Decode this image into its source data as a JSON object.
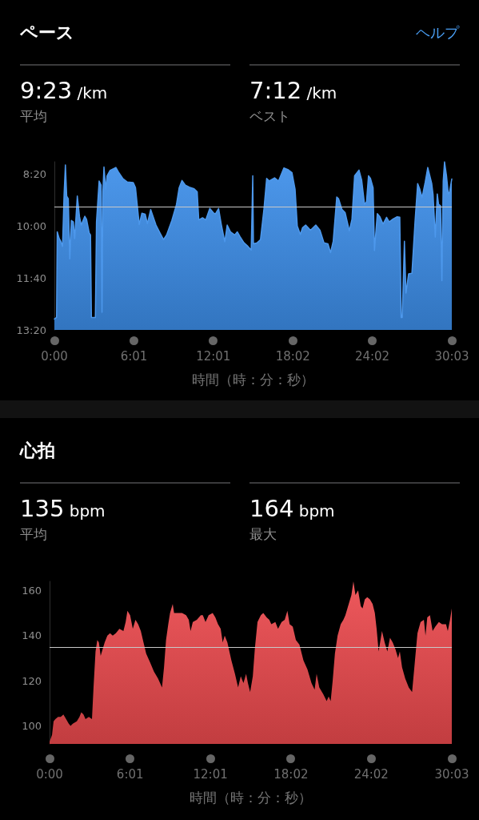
{
  "chart_data": [
    {
      "type": "line",
      "title": "ペース",
      "xlabel": "時間（時：分：秒）",
      "annotations": [
        "ヘルプ",
        "9:23 /km",
        "平均",
        "7:12 /km",
        "ベスト"
      ],
      "marker": "none",
      "x": [
        0,
        10,
        13,
        22,
        29,
        37,
        44,
        50,
        56,
        63,
        70,
        77,
        86,
        92,
        104,
        114,
        122,
        138,
        146,
        158,
        164,
        168,
        186,
        191,
        203,
        212,
        216,
        220,
        225,
        233,
        239,
        252,
        279,
        291,
        310,
        331,
        358,
        368,
        385,
        397,
        412,
        422,
        437,
        461,
        479,
        495,
        509,
        533,
        554,
        566,
        579,
        594,
        612,
        634,
        648,
        655,
        672,
        687,
        705,
        721,
        730,
        745,
        757,
        773,
        784,
        799,
        818,
        830,
        842,
        860,
        878,
        893,
        900,
        903,
        920,
        935,
        951,
        963,
        975,
        999,
        1017,
        1041,
        1059,
        1078,
        1092,
        1102,
        1116,
        1126,
        1140,
        1162,
        1186,
        1205,
        1223,
        1241,
        1253,
        1265,
        1281,
        1289,
        1305,
        1319,
        1338,
        1350,
        1362,
        1382,
        1394,
        1407,
        1416,
        1425,
        1434,
        1446,
        1452,
        1465,
        1477,
        1491,
        1507,
        1519,
        1537,
        1555,
        1567,
        1573,
        1578,
        1588,
        1595,
        1607,
        1622,
        1636,
        1648,
        1658,
        1668,
        1682,
        1694,
        1712,
        1718,
        1728,
        1737,
        1743,
        1752,
        1758,
        1764,
        1770,
        1779,
        1787,
        1793,
        1803
      ],
      "series": [
        {
          "color": "#3d8fea",
          "values": [
            779,
            776,
            611,
            624,
            629,
            639,
            539,
            482,
            542,
            547,
            663,
            589,
            592,
            624,
            542,
            582,
            598,
            581,
            587,
            613,
            617,
            776,
            776,
            592,
            513,
            521,
            766,
            534,
            486,
            529,
            503,
            493,
            487,
            496,
            508,
            515,
            516,
            526,
            597,
            575,
            577,
            595,
            568,
            598,
            613,
            626,
            617,
            589,
            558,
            526,
            512,
            521,
            525,
            528,
            534,
            588,
            584,
            588,
            566,
            574,
            577,
            566,
            596,
            630,
            598,
            611,
            617,
            611,
            620,
            632,
            639,
            646,
            503,
            634,
            632,
            626,
            566,
            508,
            513,
            507,
            513,
            488,
            491,
            497,
            529,
            600,
            616,
            603,
            598,
            608,
            598,
            608,
            632,
            634,
            651,
            629,
            544,
            547,
            568,
            574,
            609,
            587,
            503,
            492,
            511,
            558,
            553,
            503,
            508,
            526,
            647,
            576,
            582,
            596,
            583,
            592,
            586,
            582,
            583,
            776,
            776,
            629,
            729,
            692,
            691,
            592,
            518,
            529,
            545,
            516,
            487,
            518,
            539,
            621,
            538,
            558,
            561,
            705,
            513,
            476,
            503,
            538,
            534,
            509
          ],
          "lower": [
            779,
            776,
            611,
            624,
            629,
            639,
            539,
            482,
            542,
            547,
            663,
            589,
            592,
            624,
            542,
            582,
            598,
            581,
            587,
            613,
            617,
            776,
            776,
            592,
            513,
            521,
            766,
            534,
            486,
            529,
            503,
            493,
            487,
            496,
            508,
            515,
            516,
            526,
            597,
            575,
            577,
            595,
            568,
            598,
            613,
            626,
            617,
            589,
            558,
            526,
            512,
            521,
            525,
            528,
            534,
            588,
            584,
            588,
            566,
            574,
            577,
            566,
            596,
            630,
            598,
            611,
            617,
            611,
            620,
            632,
            639,
            646,
            503,
            634,
            632,
            626,
            566,
            508,
            513,
            507,
            513,
            488,
            491,
            497,
            529,
            600,
            616,
            603,
            598,
            608,
            598,
            608,
            632,
            634,
            651,
            629,
            544,
            547,
            568,
            574,
            609,
            587,
            503,
            492,
            511,
            558,
            553,
            503,
            508,
            526,
            647,
            576,
            582,
            596,
            583,
            592,
            586,
            582,
            583,
            776,
            776,
            629,
            729,
            692,
            691,
            592,
            518,
            529,
            545,
            516,
            487,
            518,
            539,
            621,
            538,
            558,
            561,
            705,
            513,
            476,
            503,
            538,
            534,
            509
          ],
          "upper": [
            800,
            800,
            800,
            800,
            800,
            800,
            800,
            800,
            800,
            800,
            800,
            800,
            800,
            800,
            800,
            800,
            800,
            800,
            800,
            800,
            800,
            800,
            800,
            800,
            800,
            800,
            800,
            800,
            800,
            800,
            800,
            800,
            800,
            800,
            800,
            800,
            800,
            800,
            800,
            800,
            800,
            800,
            800,
            800,
            800,
            800,
            800,
            800,
            800,
            800,
            800,
            800,
            800,
            800,
            800,
            800,
            800,
            800,
            800,
            800,
            800,
            800,
            800,
            800,
            800,
            800,
            800,
            800,
            800,
            800,
            800,
            800,
            800,
            800,
            800,
            800,
            800,
            800,
            800,
            800,
            800,
            800,
            800,
            800,
            800,
            800,
            800,
            800,
            800,
            800,
            800,
            800,
            800,
            800,
            800,
            800,
            800,
            800,
            800,
            800,
            800,
            800,
            800,
            800,
            800,
            800,
            800,
            800,
            800,
            800,
            800,
            800,
            800,
            800,
            800,
            800,
            800,
            800,
            800,
            800,
            800,
            800,
            800,
            800,
            800,
            800,
            800,
            800,
            800,
            800,
            800,
            800,
            800,
            800,
            800,
            800,
            800,
            800,
            800,
            800,
            800,
            800,
            800,
            800
          ]
        }
      ],
      "xlim": [
        0,
        1803
      ],
      "xticks": [
        {
          "value": 0,
          "label": "0:00"
        },
        {
          "value": 361,
          "label": "6:01"
        },
        {
          "value": 721,
          "label": "12:01"
        },
        {
          "value": 1082,
          "label": "18:02"
        },
        {
          "value": 1442,
          "label": "24:02"
        },
        {
          "value": 1803,
          "label": "30:03"
        }
      ],
      "ylim": [
        800,
        476
      ],
      "yticks": [
        {
          "value": 500,
          "label": "8:20"
        },
        {
          "value": 600,
          "label": "10:00"
        },
        {
          "value": 700,
          "label": "11:40"
        },
        {
          "value": 800,
          "label": "13:20"
        }
      ],
      "ref_lines": [
        {
          "axis": "y",
          "value": 563,
          "color": "#c8c8c8"
        }
      ]
    },
    {
      "type": "area",
      "title": "心拍",
      "xlabel": "時間（時：分：秒）",
      "annotations": [
        "135 bpm",
        "平均",
        "164 bpm",
        "最大"
      ],
      "color": "#ec4a4e",
      "marker": "none",
      "x": [
        0,
        11,
        18,
        26,
        38,
        50,
        62,
        74,
        86,
        94,
        104,
        122,
        134,
        142,
        152,
        161,
        176,
        190,
        197,
        206,
        214,
        221,
        229,
        238,
        247,
        259,
        271,
        283,
        297,
        313,
        331,
        341,
        349,
        361,
        373,
        385,
        397,
        409,
        421,
        433,
        451,
        468,
        486,
        504,
        513,
        522,
        532,
        540,
        552,
        558,
        576,
        594,
        612,
        624,
        632,
        642,
        660,
        678,
        687,
        699,
        713,
        731,
        743,
        755,
        767,
        776,
        785,
        797,
        815,
        831,
        845,
        857,
        869,
        881,
        889,
        899,
        911,
        920,
        932,
        947,
        958,
        973,
        985,
        994,
        1012,
        1024,
        1040,
        1054,
        1066,
        1076,
        1090,
        1104,
        1120,
        1138,
        1156,
        1174,
        1188,
        1197,
        1209,
        1227,
        1242,
        1251,
        1260,
        1269,
        1279,
        1291,
        1305,
        1317,
        1326,
        1338,
        1353,
        1362,
        1371,
        1383,
        1395,
        1403,
        1413,
        1424,
        1436,
        1448,
        1458,
        1466,
        1475,
        1490,
        1502,
        1514,
        1526,
        1538,
        1550,
        1562,
        1570,
        1580,
        1594,
        1610,
        1625,
        1637,
        1649,
        1663,
        1678,
        1685,
        1693,
        1705,
        1717,
        1729,
        1745,
        1759,
        1777,
        1785,
        1795,
        1803
      ],
      "values": [
        93,
        96,
        102,
        103,
        104,
        104,
        105,
        103,
        101,
        100,
        101,
        102,
        104,
        106,
        105,
        103,
        104,
        103,
        117,
        133,
        138,
        137,
        131,
        134,
        137,
        140,
        141,
        140,
        141,
        143,
        142,
        146,
        151,
        149,
        143,
        147,
        145,
        142,
        137,
        132,
        128,
        124,
        121,
        117,
        126,
        138,
        145,
        150,
        154,
        150,
        150,
        150,
        149,
        147,
        142,
        146,
        147,
        149,
        149,
        146,
        149,
        150,
        148,
        145,
        143,
        137,
        140,
        137,
        129,
        123,
        117,
        122,
        119,
        123,
        119,
        115,
        122,
        134,
        146,
        149,
        150,
        148,
        147,
        145,
        146,
        143,
        146,
        147,
        151,
        145,
        144,
        138,
        136,
        129,
        125,
        119,
        116,
        123,
        117,
        114,
        111,
        113,
        111,
        120,
        132,
        140,
        145,
        147,
        149,
        153,
        158,
        164,
        158,
        160,
        153,
        152,
        156,
        157,
        156,
        154,
        150,
        143,
        133,
        142,
        137,
        133,
        139,
        137,
        134,
        130,
        133,
        126,
        121,
        117,
        115,
        128,
        141,
        146,
        147,
        140,
        148,
        149,
        142,
        144,
        146,
        145,
        145,
        142,
        147,
        152
      ],
      "xlim": [
        0,
        1803
      ],
      "xticks": [
        {
          "value": 0,
          "label": "0:00"
        },
        {
          "value": 361,
          "label": "6:01"
        },
        {
          "value": 721,
          "label": "12:01"
        },
        {
          "value": 1082,
          "label": "18:02"
        },
        {
          "value": 1442,
          "label": "24:02"
        },
        {
          "value": 1803,
          "label": "30:03"
        }
      ],
      "ylim": [
        92,
        164
      ],
      "yticks": [
        100,
        120,
        140,
        160
      ],
      "ref_lines": [
        {
          "axis": "y",
          "value": 135,
          "color": "#c8c8c8"
        }
      ]
    }
  ]
}
